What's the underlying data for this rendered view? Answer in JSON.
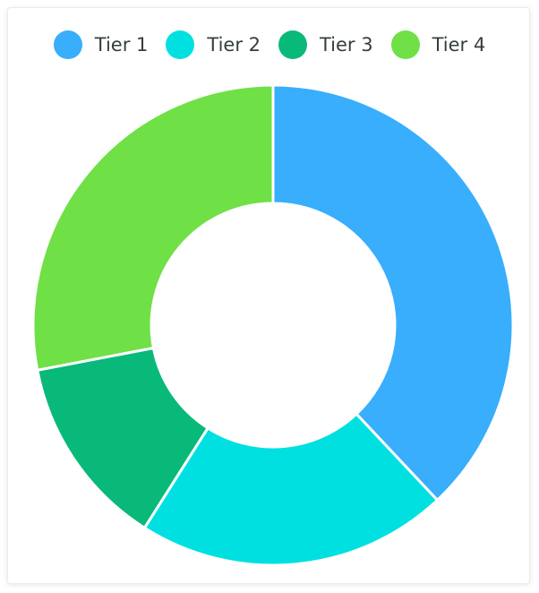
{
  "chart_data": {
    "type": "pie",
    "variant": "donut",
    "title": "",
    "categories": [
      "Tier 1",
      "Tier 2",
      "Tier 3",
      "Tier 4"
    ],
    "values": [
      38,
      21,
      13,
      28
    ],
    "colors": [
      "#38aefc",
      "#00e0e0",
      "#08b97a",
      "#6fe046"
    ],
    "legend_placement": "top"
  }
}
